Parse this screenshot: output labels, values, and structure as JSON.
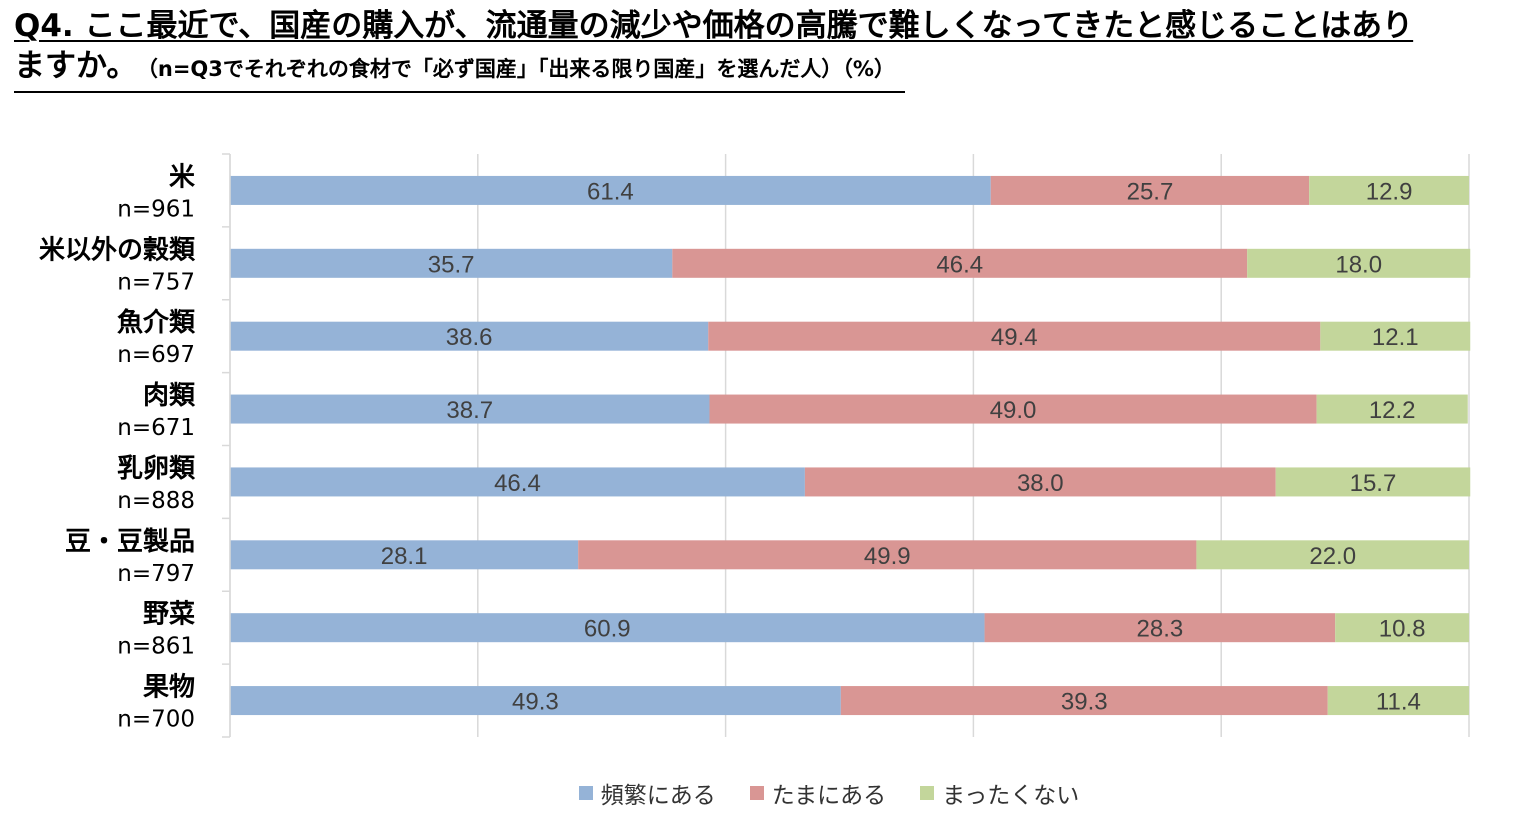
{
  "title": {
    "line1": "Q4. ここ最近で、国産の購入が、流通量の減少や価格の高騰で難しくなってきたと感じることはあり",
    "line2_main": "ますか。",
    "line2_note": "（n=Q3でそれぞれの食材で「必ず国産」「出来る限り国産」を選んだ人）（%）"
  },
  "colors": {
    "frequent": "#95B3D7",
    "sometimes": "#D99694",
    "never": "#C3D69B",
    "grid": "#D9D9D9",
    "label_text": "#404040"
  },
  "chart_data": {
    "type": "bar",
    "orientation": "horizontal-stacked-100",
    "xlim": [
      0,
      100
    ],
    "categories": [
      "米",
      "米以外の穀類",
      "魚介類",
      "肉類",
      "乳卵類",
      "豆・豆製品",
      "野菜",
      "果物"
    ],
    "sample_sizes": [
      "n=961",
      "n=757",
      "n=697",
      "n=671",
      "n=888",
      "n=797",
      "n=861",
      "n=700"
    ],
    "series": [
      {
        "name": "頻繁にある",
        "values": [
          61.4,
          35.7,
          38.6,
          38.7,
          46.4,
          28.1,
          60.9,
          49.3
        ]
      },
      {
        "name": "たまにある",
        "values": [
          25.7,
          46.4,
          49.4,
          49.0,
          38.0,
          49.9,
          28.3,
          39.3
        ]
      },
      {
        "name": "まったくない",
        "values": [
          12.9,
          18.0,
          12.1,
          12.2,
          15.7,
          22.0,
          10.8,
          11.4
        ]
      }
    ],
    "legend": [
      "頻繁にある",
      "たまにある",
      "まったくない"
    ],
    "legend_position": "bottom",
    "grid": true
  }
}
